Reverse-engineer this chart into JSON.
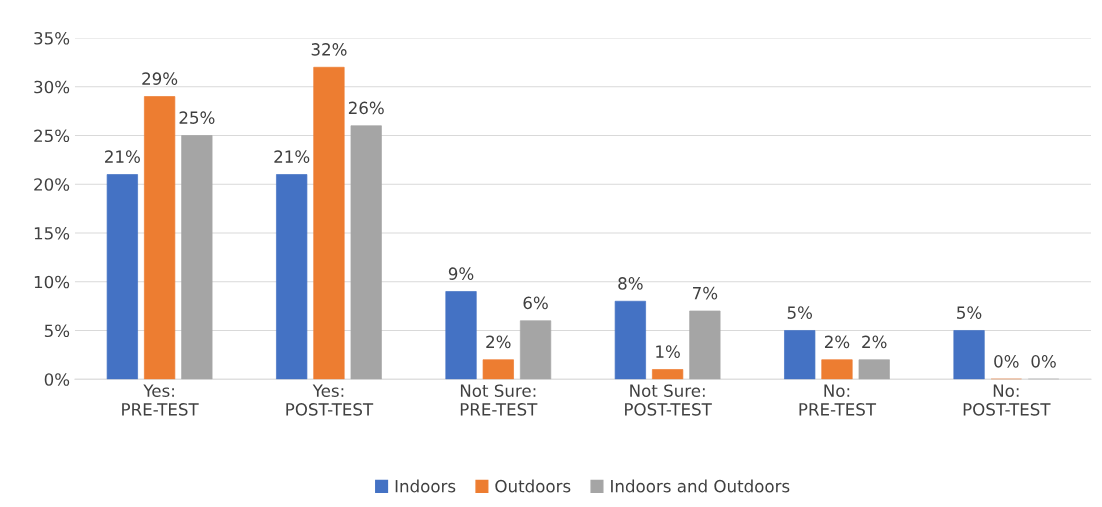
{
  "chart_data": {
    "type": "bar",
    "categories": [
      "Yes:\nPRE-TEST",
      "Yes:\nPOST-TEST",
      "Not Sure:\nPRE-TEST",
      "Not Sure:\nPOST-TEST",
      "No:\nPRE-TEST",
      "No:\nPOST-TEST"
    ],
    "series": [
      {
        "name": "Indoors",
        "color": "#4472c4",
        "values": [
          21,
          21,
          9,
          8,
          5,
          5
        ],
        "value_labels": [
          "21%",
          "21%",
          "9%",
          "8%",
          "5%",
          "5%"
        ]
      },
      {
        "name": "Outdoors",
        "color": "#ed7d31",
        "values": [
          29,
          32,
          2,
          1,
          2,
          0
        ],
        "value_labels": [
          "29%",
          "32%",
          "2%",
          "1%",
          "2%",
          "0%"
        ]
      },
      {
        "name": "Indoors and Outdoors",
        "color": "#a5a5a5",
        "values": [
          25,
          26,
          6,
          7,
          2,
          0
        ],
        "value_labels": [
          "25%",
          "26%",
          "6%",
          "7%",
          "2%",
          "0%"
        ]
      }
    ],
    "ylim": [
      0,
      35
    ],
    "yticks": [
      {
        "value": 0,
        "label": "0%"
      },
      {
        "value": 5,
        "label": "5%"
      },
      {
        "value": 10,
        "label": "10%"
      },
      {
        "value": 15,
        "label": "15%"
      },
      {
        "value": 20,
        "label": "20%"
      },
      {
        "value": 25,
        "label": "25%"
      },
      {
        "value": 30,
        "label": "30%"
      },
      {
        "value": 35,
        "label": "35%"
      }
    ],
    "grid": "y",
    "legend": "bottom"
  }
}
